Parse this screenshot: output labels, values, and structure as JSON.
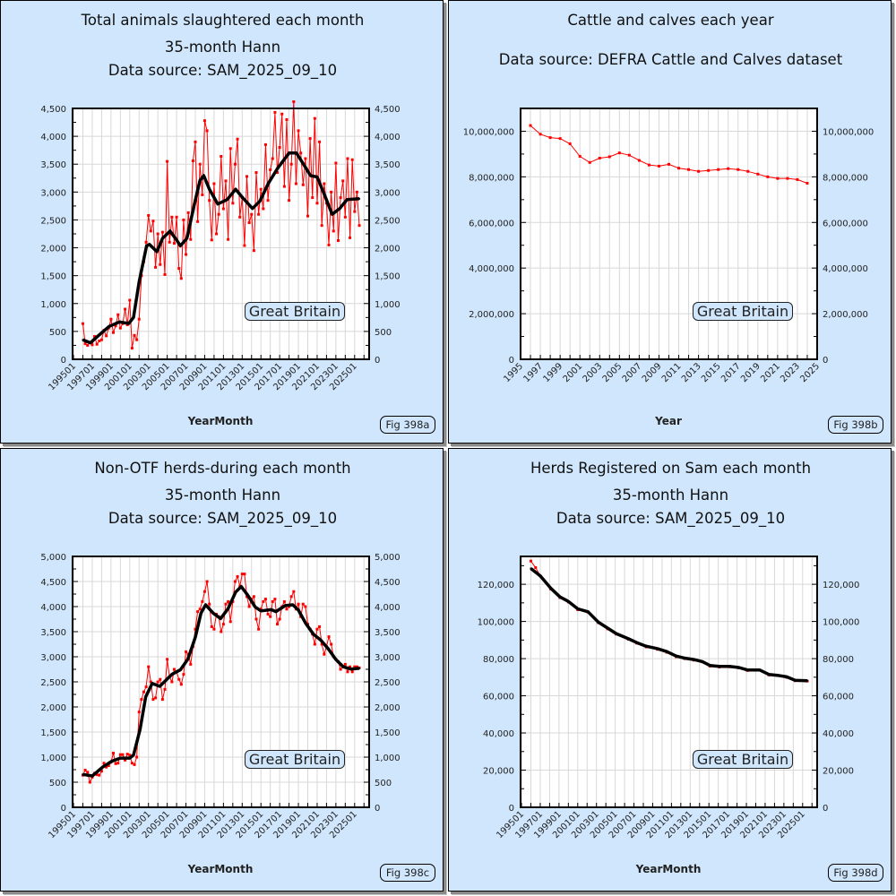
{
  "chart_data": [
    {
      "type": "line",
      "title": [
        "Total animals slaughtered each month",
        "35-month Hann",
        "Data source: SAM_2025_09_10"
      ],
      "xlabel": "YearMonth",
      "ylabel": "",
      "fig_label": "Fig 398a",
      "annotation": "Great Britain",
      "grid": true,
      "xlim": [
        1994.9,
        2026.55
      ],
      "ylim": [
        0,
        4500
      ],
      "y_major": 500,
      "y_minor": 250,
      "x_ticks": [
        1995,
        1997,
        1999,
        2001,
        2003,
        2005,
        2007,
        2009,
        2011,
        2013,
        2015,
        2017,
        2019,
        2021,
        2023,
        2025
      ],
      "x_tick_labels": [
        "199501",
        "199701",
        "199901",
        "200101",
        "200301",
        "200501",
        "200701",
        "200901",
        "201101",
        "201301",
        "201501",
        "201701",
        "201901",
        "202101",
        "202301",
        "202501"
      ],
      "series": [
        {
          "name": "Monthly total",
          "color": "#ff0000",
          "x_start": 1996,
          "x_step": 0.25,
          "values": [
            640,
            280,
            250,
            300,
            260,
            410,
            270,
            330,
            350,
            520,
            420,
            560,
            720,
            480,
            600,
            800,
            560,
            640,
            900,
            620,
            1060,
            200,
            430,
            350,
            720,
            1500,
            1750,
            2100,
            2580,
            2300,
            2480,
            1650,
            2250,
            1700,
            2280,
            1520,
            3550,
            2100,
            2550,
            2080,
            2550,
            1630,
            1450,
            2500,
            1880,
            2630,
            2150,
            3560,
            3900,
            2470,
            3500,
            2950,
            4280,
            4100,
            2850,
            2140,
            3150,
            2250,
            2600,
            3640,
            2700,
            3200,
            2150,
            3780,
            2800,
            3500,
            3950,
            2550,
            2900,
            2040,
            3280,
            2450,
            2600,
            1950,
            3350,
            2600,
            3050,
            2700,
            3850,
            2850,
            3400,
            3600,
            4430,
            3350,
            3800,
            4400,
            3100,
            4300,
            2850,
            3500,
            4620,
            3150,
            4100,
            3700,
            3130,
            3600,
            2570,
            3960,
            2900,
            4320,
            2800,
            3900,
            2400,
            3150,
            2800,
            2050,
            3000,
            2300,
            3520,
            2130,
            2900,
            3200,
            2550,
            3600,
            2180,
            3580,
            2650,
            3000,
            2400
          ]
        },
        {
          "name": "35-month Hann",
          "color": "#000000",
          "points": [
            [
              1996.0,
              348
            ],
            [
              1996.8,
              295
            ],
            [
              1997.7,
              430
            ],
            [
              1998.8,
              590
            ],
            [
              1999.9,
              670
            ],
            [
              2000.9,
              643
            ],
            [
              2001.4,
              750
            ],
            [
              2002.0,
              1390
            ],
            [
              2002.8,
              2035
            ],
            [
              2003.1,
              2060
            ],
            [
              2003.9,
              1930
            ],
            [
              2004.5,
              2170
            ],
            [
              2005.3,
              2300
            ],
            [
              2006.0,
              2140
            ],
            [
              2006.4,
              2035
            ],
            [
              2007.1,
              2170
            ],
            [
              2007.9,
              2785
            ],
            [
              2008.5,
              3210
            ],
            [
              2008.9,
              3295
            ],
            [
              2009.5,
              3050
            ],
            [
              2010.4,
              2785
            ],
            [
              2011.4,
              2865
            ],
            [
              2012.3,
              3050
            ],
            [
              2013.1,
              2890
            ],
            [
              2014.1,
              2705
            ],
            [
              2014.9,
              2840
            ],
            [
              2015.8,
              3160
            ],
            [
              2016.8,
              3430
            ],
            [
              2018.0,
              3700
            ],
            [
              2018.8,
              3700
            ],
            [
              2019.5,
              3510
            ],
            [
              2020.3,
              3295
            ],
            [
              2021.0,
              3270
            ],
            [
              2021.8,
              2945
            ],
            [
              2022.6,
              2600
            ],
            [
              2023.4,
              2705
            ],
            [
              2024.2,
              2865
            ],
            [
              2025.5,
              2880
            ]
          ]
        }
      ]
    },
    {
      "type": "line",
      "title": [
        "Cattle and calves each year",
        "Data source: DEFRA Cattle and Calves dataset"
      ],
      "xlabel": "Year",
      "ylabel": "",
      "fig_label": "Fig 398b",
      "annotation": "Great Britain",
      "grid": true,
      "xlim": [
        1995,
        2025
      ],
      "ylim": [
        0,
        11000000
      ],
      "y_major": 2000000,
      "y_minor": 1000000,
      "x_ticks": [
        1995,
        1997,
        1999,
        2001,
        2003,
        2005,
        2007,
        2009,
        2011,
        2013,
        2015,
        2017,
        2019,
        2021,
        2023,
        2025
      ],
      "x_tick_labels": [
        "1995",
        "1997",
        "1999",
        "2001",
        "2003",
        "2005",
        "2007",
        "2009",
        "2011",
        "2013",
        "2015",
        "2017",
        "2019",
        "2021",
        "2023",
        "2025"
      ],
      "series": [
        {
          "name": "Cattle and calves",
          "color": "#ff0000",
          "x_start": 1996,
          "x_step": 1,
          "values": [
            10250000,
            9870000,
            9720000,
            9680000,
            9450000,
            8900000,
            8630000,
            8820000,
            8880000,
            9050000,
            8950000,
            8720000,
            8520000,
            8470000,
            8550000,
            8380000,
            8320000,
            8240000,
            8280000,
            8320000,
            8360000,
            8320000,
            8240000,
            8120000,
            8000000,
            7930000,
            7930000,
            7880000,
            7720000
          ]
        }
      ]
    },
    {
      "type": "line",
      "title": [
        "Non-OTF herds-during each month",
        "35-month Hann",
        "Data source: SAM_2025_09_10"
      ],
      "xlabel": "YearMonth",
      "ylabel": "",
      "fig_label": "Fig 398c",
      "annotation": "Great Britain",
      "grid": true,
      "xlim": [
        1994.9,
        2026.55
      ],
      "ylim": [
        0,
        5000
      ],
      "y_major": 500,
      "y_minor": 250,
      "x_ticks": [
        1995,
        1997,
        1999,
        2001,
        2003,
        2005,
        2007,
        2009,
        2011,
        2013,
        2015,
        2017,
        2019,
        2021,
        2023,
        2025
      ],
      "x_tick_labels": [
        "199501",
        "199701",
        "199901",
        "200101",
        "200301",
        "200501",
        "200701",
        "200901",
        "201101",
        "201301",
        "201501",
        "201701",
        "201901",
        "202101",
        "202301",
        "202501"
      ],
      "series": [
        {
          "name": "Monthly herds",
          "color": "#ff0000",
          "x_start": 1996,
          "x_step": 0.25,
          "values": [
            640,
            740,
            700,
            500,
            600,
            680,
            650,
            640,
            720,
            880,
            800,
            830,
            900,
            1080,
            870,
            880,
            1050,
            1050,
            940,
            1060,
            1040,
            880,
            850,
            1000,
            1900,
            2150,
            2300,
            2400,
            2800,
            2500,
            2150,
            2180,
            2500,
            2550,
            2150,
            2350,
            2950,
            2600,
            2500,
            2750,
            2700,
            2550,
            2450,
            2650,
            3100,
            3050,
            2850,
            3200,
            3550,
            3900,
            3950,
            4100,
            4300,
            4500,
            4050,
            3600,
            3550,
            3850,
            3800,
            3500,
            3650,
            4050,
            4100,
            3700,
            4100,
            4500,
            4600,
            4400,
            4650,
            4650,
            4200,
            4000,
            4150,
            4200,
            3750,
            3550,
            3950,
            4100,
            4150,
            3850,
            3800,
            4100,
            4150,
            3650,
            3750,
            4000,
            4100,
            3950,
            4000,
            4200,
            4300,
            3950,
            4050,
            3800,
            4050,
            4000,
            3650,
            3550,
            3450,
            3250,
            3550,
            3600,
            3250,
            3050,
            3200,
            3400,
            3250,
            3000,
            2950,
            2900,
            2750,
            2800,
            2850,
            2700,
            2800,
            2700,
            2800,
            2800,
            2780
          ]
        },
        {
          "name": "35-month Hann",
          "color": "#000000",
          "points": [
            [
              1996.0,
              655
            ],
            [
              1997.0,
              625
            ],
            [
              1998.1,
              800
            ],
            [
              1999.1,
              920
            ],
            [
              2000.0,
              980
            ],
            [
              2001.0,
              980
            ],
            [
              2001.4,
              1040
            ],
            [
              2002.1,
              1550
            ],
            [
              2002.7,
              2200
            ],
            [
              2003.4,
              2470
            ],
            [
              2004.2,
              2410
            ],
            [
              2005.5,
              2650
            ],
            [
              2006.4,
              2740
            ],
            [
              2007.2,
              2950
            ],
            [
              2008.0,
              3390
            ],
            [
              2008.6,
              3870
            ],
            [
              2009.1,
              4035
            ],
            [
              2009.9,
              3870
            ],
            [
              2010.7,
              3760
            ],
            [
              2011.5,
              3960
            ],
            [
              2012.3,
              4290
            ],
            [
              2012.9,
              4400
            ],
            [
              2013.6,
              4225
            ],
            [
              2014.4,
              3990
            ],
            [
              2015.0,
              3915
            ],
            [
              2016.1,
              3940
            ],
            [
              2016.6,
              3900
            ],
            [
              2017.6,
              4020
            ],
            [
              2018.4,
              4035
            ],
            [
              2019.0,
              3930
            ],
            [
              2019.8,
              3660
            ],
            [
              2020.6,
              3450
            ],
            [
              2021.4,
              3330
            ],
            [
              2022.2,
              3155
            ],
            [
              2023.0,
              2945
            ],
            [
              2023.8,
              2800
            ],
            [
              2024.6,
              2755
            ],
            [
              2025.5,
              2770
            ]
          ]
        }
      ]
    },
    {
      "type": "line",
      "title": [
        "Herds Registered on Sam each month",
        "35-month Hann",
        "Data source: SAM_2025_09_10"
      ],
      "xlabel": "YearMonth",
      "ylabel": "",
      "fig_label": "Fig 398d",
      "annotation": "Great Britain",
      "grid": true,
      "xlim": [
        1994.9,
        2026.55
      ],
      "ylim": [
        0,
        135000
      ],
      "y_major": 20000,
      "y_minor": 10000,
      "x_ticks": [
        1995,
        1997,
        1999,
        2001,
        2003,
        2005,
        2007,
        2009,
        2011,
        2013,
        2015,
        2017,
        2019,
        2021,
        2023,
        2025
      ],
      "x_tick_labels": [
        "199501",
        "199701",
        "199901",
        "200101",
        "200301",
        "200501",
        "200701",
        "200901",
        "201101",
        "201301",
        "201501",
        "201701",
        "201901",
        "202101",
        "202301",
        "202501"
      ],
      "series": [
        {
          "name": "Monthly herds registered",
          "color": "#ff0000",
          "points": [
            [
              1996.0,
              132500
            ],
            [
              1996.5,
              129000
            ],
            [
              1997.0,
              124500
            ],
            [
              1998.1,
              117500
            ],
            [
              1999.1,
              112800
            ],
            [
              2000.0,
              110500
            ],
            [
              2001.0,
              106300
            ],
            [
              2002.1,
              105000
            ],
            [
              2003.2,
              99300
            ],
            [
              2004.2,
              96000
            ],
            [
              2005.1,
              93200
            ],
            [
              2006.4,
              90400
            ],
            [
              2007.3,
              88300
            ],
            [
              2008.3,
              86300
            ],
            [
              2009.5,
              85000
            ],
            [
              2010.5,
              83400
            ],
            [
              2011.5,
              81000
            ],
            [
              2012.4,
              80000
            ],
            [
              2013.4,
              79200
            ],
            [
              2014.3,
              78300
            ],
            [
              2015.1,
              76000
            ],
            [
              2016.1,
              75500
            ],
            [
              2017.2,
              75600
            ],
            [
              2018.2,
              75000
            ],
            [
              2019.1,
              73600
            ],
            [
              2020.4,
              73800
            ],
            [
              2021.4,
              71200
            ],
            [
              2022.3,
              70900
            ],
            [
              2023.3,
              69900
            ],
            [
              2024.2,
              68100
            ],
            [
              2025.5,
              67900
            ]
          ]
        },
        {
          "name": "35-month Hann",
          "color": "#000000",
          "points": [
            [
              1996.0,
              128500
            ],
            [
              1997.0,
              124500
            ],
            [
              1998.1,
              118000
            ],
            [
              1999.1,
              113200
            ],
            [
              2000.0,
              110800
            ],
            [
              2001.0,
              106800
            ],
            [
              2002.1,
              105200
            ],
            [
              2003.2,
              99600
            ],
            [
              2004.2,
              96400
            ],
            [
              2005.1,
              93500
            ],
            [
              2006.4,
              90700
            ],
            [
              2007.3,
              88600
            ],
            [
              2008.3,
              86700
            ],
            [
              2009.5,
              85400
            ],
            [
              2010.5,
              83800
            ],
            [
              2011.5,
              81400
            ],
            [
              2012.4,
              80300
            ],
            [
              2013.4,
              79500
            ],
            [
              2014.3,
              78400
            ],
            [
              2015.1,
              76300
            ],
            [
              2016.1,
              75800
            ],
            [
              2017.2,
              75800
            ],
            [
              2018.2,
              75200
            ],
            [
              2019.1,
              73900
            ],
            [
              2020.4,
              73900
            ],
            [
              2021.4,
              71500
            ],
            [
              2022.3,
              71000
            ],
            [
              2023.3,
              70200
            ],
            [
              2024.2,
              68300
            ],
            [
              2025.5,
              68100
            ]
          ]
        }
      ]
    }
  ]
}
